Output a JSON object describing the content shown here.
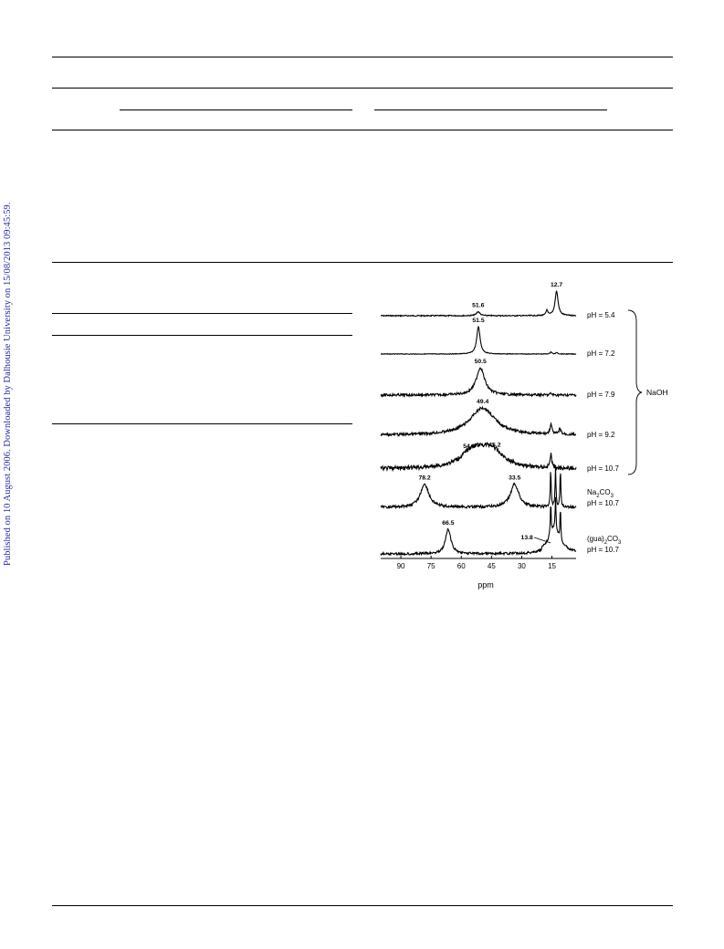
{
  "side_note": "Published on 10 August 2006. Downloaded by Dalhousie University on 15/08/2013 09:45:59.",
  "figure": {
    "chart_data": {
      "type": "line",
      "xlabel": "ppm",
      "x_ticks": [
        90,
        75,
        60,
        45,
        30,
        15
      ],
      "xlim": [
        100,
        3
      ],
      "group_label": "NaOH",
      "series": [
        {
          "name": "pH = 5.4",
          "peaks": [
            {
              "ppm": 51.6,
              "label": "51.6",
              "height": 0.15,
              "width": 1.0
            },
            {
              "ppm": 12.7,
              "label": "12.7",
              "height": 0.9,
              "width": 0.9
            },
            {
              "ppm": 17.5,
              "height": 0.2,
              "width": 0.5
            }
          ]
        },
        {
          "name": "pH = 7.2",
          "peaks": [
            {
              "ppm": 51.5,
              "label": "51.5",
              "height": 1.0,
              "width": 1.0
            },
            {
              "ppm": 15.5,
              "height": 0.08,
              "width": 0.5
            },
            {
              "ppm": 12.5,
              "height": 0.06,
              "width": 0.5
            }
          ]
        },
        {
          "name": "pH = 7.9",
          "peaks": [
            {
              "ppm": 50.5,
              "label": "50.5",
              "height": 1.0,
              "width": 2.5
            },
            {
              "ppm": 15.5,
              "height": 0.06,
              "width": 0.5
            }
          ]
        },
        {
          "name": "pH = 9.2",
          "peaks": [
            {
              "ppm": 49.4,
              "label": "49.4",
              "height": 1.0,
              "width": 7.5
            },
            {
              "ppm": 15.5,
              "height": 0.35,
              "width": 0.6
            },
            {
              "ppm": 11.0,
              "height": 0.2,
              "width": 0.6
            }
          ]
        },
        {
          "name": "pH = 10.7",
          "peaks": [
            {
              "ppm": 54.3,
              "label": "54.3",
              "height": 0.6,
              "width": 7.0
            },
            {
              "ppm": 45.2,
              "label": "45.2",
              "height": 0.65,
              "width": 7.0
            },
            {
              "ppm": 15.5,
              "height": 0.5,
              "width": 0.5
            }
          ]
        },
        {
          "name_sub": "Na2CO3",
          "name": "pH = 10.7",
          "peaks": [
            {
              "ppm": 78.2,
              "label": "78.2",
              "height": 0.85,
              "width": 2.5
            },
            {
              "ppm": 33.5,
              "label": "33.5",
              "height": 0.85,
              "width": 2.5
            },
            {
              "ppm": 15.6,
              "height": 1.4,
              "width": 0.25
            },
            {
              "ppm": 13.2,
              "height": 1.4,
              "width": 0.25
            },
            {
              "ppm": 10.8,
              "height": 1.4,
              "width": 0.25
            }
          ]
        },
        {
          "name_sub": "(gua)2CO3",
          "name": "pH = 10.7",
          "peaks": [
            {
              "ppm": 66.5,
              "label": "66.5",
              "height": 0.9,
              "width": 1.6
            },
            {
              "ppm": 13.8,
              "label": "13.8",
              "height": 0.55,
              "width": 2.5
            },
            {
              "ppm": 15.6,
              "height": 1.2,
              "width": 0.25
            },
            {
              "ppm": 13.2,
              "height": 1.2,
              "width": 0.25
            },
            {
              "ppm": 10.8,
              "height": 1.2,
              "width": 0.25
            }
          ]
        }
      ]
    }
  }
}
